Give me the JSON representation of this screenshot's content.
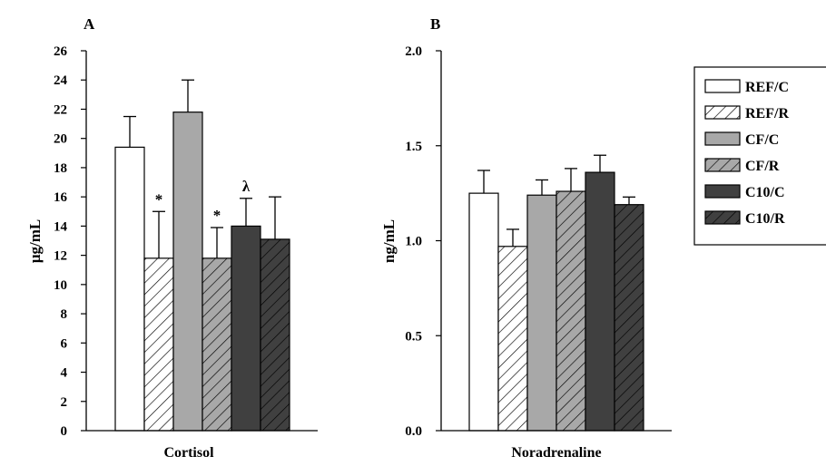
{
  "chart_data": [
    {
      "type": "bar",
      "panel_label": "A",
      "ylabel": "µg/mL",
      "xlabel": "",
      "category_label": "Cortisol",
      "ylim": [
        0,
        26
      ],
      "yticks": [
        "0",
        "2",
        "4",
        "6",
        "8",
        "10",
        "12",
        "14",
        "16",
        "18",
        "20",
        "22",
        "24",
        "26"
      ],
      "ytick_values": [
        0,
        2,
        4,
        6,
        8,
        10,
        12,
        14,
        16,
        18,
        20,
        22,
        24,
        26
      ],
      "series": [
        {
          "name": "REF/C",
          "value": 19.4,
          "error": 2.1,
          "annotation": ""
        },
        {
          "name": "REF/R",
          "value": 11.8,
          "error": 3.2,
          "annotation": "*"
        },
        {
          "name": "CF/C",
          "value": 21.8,
          "error": 2.2,
          "annotation": ""
        },
        {
          "name": "CF/R",
          "value": 11.8,
          "error": 2.1,
          "annotation": "*"
        },
        {
          "name": "C10/C",
          "value": 14.0,
          "error": 1.9,
          "annotation": "λ"
        },
        {
          "name": "C10/R",
          "value": 13.1,
          "error": 2.9,
          "annotation": ""
        }
      ],
      "grid": false
    },
    {
      "type": "bar",
      "panel_label": "B",
      "ylabel": "ng/mL",
      "xlabel": "",
      "category_label": "Noradrenaline",
      "ylim": [
        0,
        2.0
      ],
      "yticks": [
        "0.0",
        "0.5",
        "1.0",
        "1.5",
        "2.0"
      ],
      "ytick_values": [
        0,
        0.5,
        1.0,
        1.5,
        2.0
      ],
      "series": [
        {
          "name": "REF/C",
          "value": 1.25,
          "error": 0.12,
          "annotation": ""
        },
        {
          "name": "REF/R",
          "value": 0.97,
          "error": 0.09,
          "annotation": ""
        },
        {
          "name": "CF/C",
          "value": 1.24,
          "error": 0.08,
          "annotation": ""
        },
        {
          "name": "CF/R",
          "value": 1.26,
          "error": 0.12,
          "annotation": ""
        },
        {
          "name": "C10/C",
          "value": 1.36,
          "error": 0.09,
          "annotation": ""
        },
        {
          "name": "C10/R",
          "value": 1.19,
          "error": 0.04,
          "annotation": ""
        }
      ],
      "grid": false
    }
  ],
  "legend": {
    "placement": "top-right",
    "entries": [
      {
        "label": "REF/C",
        "fill": "#ffffff",
        "hatch": false
      },
      {
        "label": "REF/R",
        "fill": "#ffffff",
        "hatch": true
      },
      {
        "label": "CF/C",
        "fill": "#a8a8a8",
        "hatch": false
      },
      {
        "label": "CF/R",
        "fill": "#a8a8a8",
        "hatch": true
      },
      {
        "label": "C10/C",
        "fill": "#404040",
        "hatch": false
      },
      {
        "label": "C10/R",
        "fill": "#404040",
        "hatch": true
      }
    ]
  },
  "colors": {
    "ref": "#ffffff",
    "cf": "#a8a8a8",
    "c10": "#404040",
    "stroke": "#000000"
  }
}
